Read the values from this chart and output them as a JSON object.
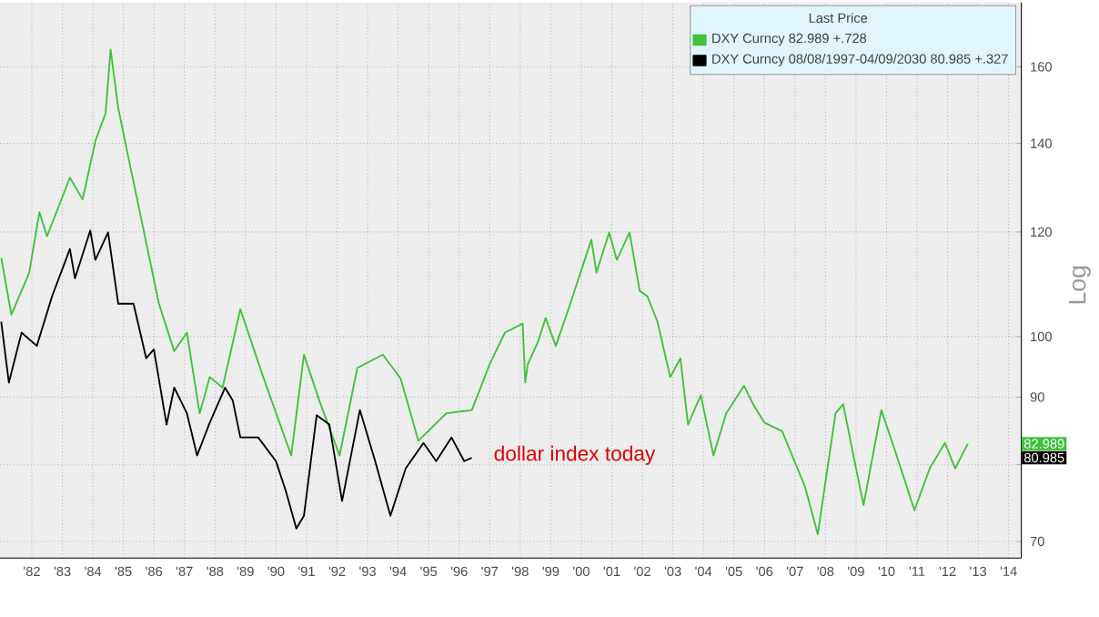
{
  "chart_data": {
    "type": "line",
    "log": "y",
    "grid": true,
    "legend": "top right",
    "legend_title": "Last Price",
    "ylabel": "Log",
    "xlim": [
      "1981-06-17",
      "2014-12-02"
    ],
    "ylim": [
      68,
      179
    ],
    "xticks": [
      {
        "value": "1982-07-02",
        "label": "'82"
      },
      {
        "value": "1983-07-02",
        "label": "'83"
      },
      {
        "value": "1984-07-02",
        "label": "'84"
      },
      {
        "value": "1985-07-02",
        "label": "'85"
      },
      {
        "value": "1986-07-02",
        "label": "'86"
      },
      {
        "value": "1987-07-02",
        "label": "'87"
      },
      {
        "value": "1988-07-02",
        "label": "'88"
      },
      {
        "value": "1989-07-02",
        "label": "'89"
      },
      {
        "value": "1990-07-02",
        "label": "'90"
      },
      {
        "value": "1991-07-02",
        "label": "'91"
      },
      {
        "value": "1992-07-02",
        "label": "'92"
      },
      {
        "value": "1993-07-02",
        "label": "'93"
      },
      {
        "value": "1994-07-02",
        "label": "'94"
      },
      {
        "value": "1995-07-02",
        "label": "'95"
      },
      {
        "value": "1996-07-02",
        "label": "'96"
      },
      {
        "value": "1997-07-02",
        "label": "'97"
      },
      {
        "value": "1998-07-02",
        "label": "'98"
      },
      {
        "value": "1999-07-02",
        "label": "'99"
      },
      {
        "value": "2000-07-02",
        "label": "'00"
      },
      {
        "value": "2001-07-02",
        "label": "'01"
      },
      {
        "value": "2002-07-02",
        "label": "'02"
      },
      {
        "value": "2003-07-02",
        "label": "'03"
      },
      {
        "value": "2004-07-02",
        "label": "'04"
      },
      {
        "value": "2005-07-02",
        "label": "'05"
      },
      {
        "value": "2006-07-02",
        "label": "'06"
      },
      {
        "value": "2007-07-02",
        "label": "'07"
      },
      {
        "value": "2008-07-02",
        "label": "'08"
      },
      {
        "value": "2009-07-02",
        "label": "'09"
      },
      {
        "value": "2010-07-02",
        "label": "'10"
      },
      {
        "value": "2011-07-02",
        "label": "'11"
      },
      {
        "value": "2012-07-02",
        "label": "'12"
      },
      {
        "value": "2013-07-02",
        "label": "'13"
      },
      {
        "value": "2014-07-02",
        "label": "'14"
      }
    ],
    "yticks": [
      70,
      {
        "value": 80,
        "label": null
      },
      90,
      100,
      120,
      140,
      160
    ],
    "annotations": [
      "dollar index today",
      "82.989",
      "80.985"
    ],
    "series": [
      {
        "name": "DXY Curncy 82.989 +.728",
        "color": "#3ec23a",
        "x": [
          "1981-07",
          "1981-11",
          "1982-06",
          "1982-10",
          "1983-01",
          "1983-10",
          "1984-03",
          "1984-08",
          "1984-12",
          "1985-02",
          "1985-05",
          "1985-09",
          "1986-03",
          "1986-09",
          "1987-03",
          "1987-08",
          "1988-01",
          "1988-05",
          "1988-10",
          "1989-05",
          "1990-02",
          "1991-01",
          "1991-06",
          "1991-12",
          "1992-08",
          "1993-03",
          "1994-01",
          "1994-08",
          "1995-03",
          "1996-02",
          "1996-12",
          "1997-07",
          "1998-01",
          "1998-08",
          "1998-09",
          "1998-10",
          "1999-02",
          "1999-05",
          "1999-09",
          "2000-02",
          "2000-11",
          "2001-01",
          "2001-06",
          "2001-09",
          "2002-02",
          "2002-06",
          "2002-09",
          "2003-01",
          "2003-06",
          "2003-10",
          "2004-01",
          "2004-06",
          "2004-11",
          "2005-04",
          "2005-11",
          "2006-03",
          "2006-07",
          "2007-02",
          "2007-11",
          "2008-04",
          "2008-11",
          "2009-02",
          "2009-06",
          "2009-10",
          "2010-05",
          "2010-11",
          "2011-06",
          "2011-12",
          "2012-06",
          "2012-10",
          "2013-03"
        ],
        "values": [
          114.7,
          103.9,
          111.8,
          124.2,
          119.1,
          131.9,
          127.0,
          140.6,
          147.5,
          164.9,
          148.9,
          136.6,
          120.3,
          105.9,
          97.5,
          100.7,
          87.5,
          93.2,
          91.5,
          104.9,
          93.2,
          81.3,
          96.9,
          89.5,
          81.3,
          94.7,
          96.9,
          93.0,
          83.4,
          87.5,
          88.0,
          95.3,
          100.7,
          102.3,
          92.3,
          95.3,
          99.1,
          103.3,
          98.4,
          104.9,
          118.4,
          111.8,
          119.9,
          114.3,
          119.9,
          108.3,
          107.3,
          102.6,
          93.2,
          96.3,
          85.8,
          90.3,
          81.3,
          87.5,
          91.8,
          88.6,
          86.1,
          84.8,
          77.0,
          70.9,
          87.5,
          88.9,
          81.3,
          74.6,
          88.0,
          81.3,
          73.9,
          79.5,
          83.1,
          79.5,
          82.989
        ]
      },
      {
        "name": "DXY Curncy 08/08/1997-04/09/2030 80.985 +.327",
        "color": "#000000",
        "x": [
          "1981-07",
          "1981-10",
          "1982-03",
          "1982-09",
          "1983-03",
          "1983-10",
          "1983-12",
          "1984-06",
          "1984-08",
          "1985-01",
          "1985-05",
          "1985-11",
          "1986-04",
          "1986-07",
          "1986-12",
          "1987-03",
          "1987-08",
          "1987-12",
          "1988-05",
          "1988-11",
          "1989-02",
          "1989-05",
          "1989-12",
          "1990-07",
          "1990-11",
          "1991-03",
          "1991-06",
          "1991-11",
          "1992-04",
          "1992-09",
          "1993-04",
          "1993-10",
          "1994-04",
          "1994-10",
          "1995-05",
          "1995-10",
          "1996-04",
          "1996-09",
          "1996-12"
        ],
        "values": [
          102.6,
          92.3,
          100.7,
          98.4,
          107.3,
          116.5,
          110.7,
          120.3,
          114.3,
          119.9,
          105.9,
          105.9,
          96.3,
          97.8,
          85.8,
          91.5,
          87.5,
          81.3,
          86.1,
          91.5,
          89.5,
          83.9,
          83.9,
          80.5,
          76.3,
          71.6,
          73.2,
          87.2,
          85.8,
          75.1,
          88.0,
          80.5,
          73.2,
          79.5,
          83.1,
          80.5,
          83.9,
          80.5,
          80.985
        ]
      }
    ]
  }
}
